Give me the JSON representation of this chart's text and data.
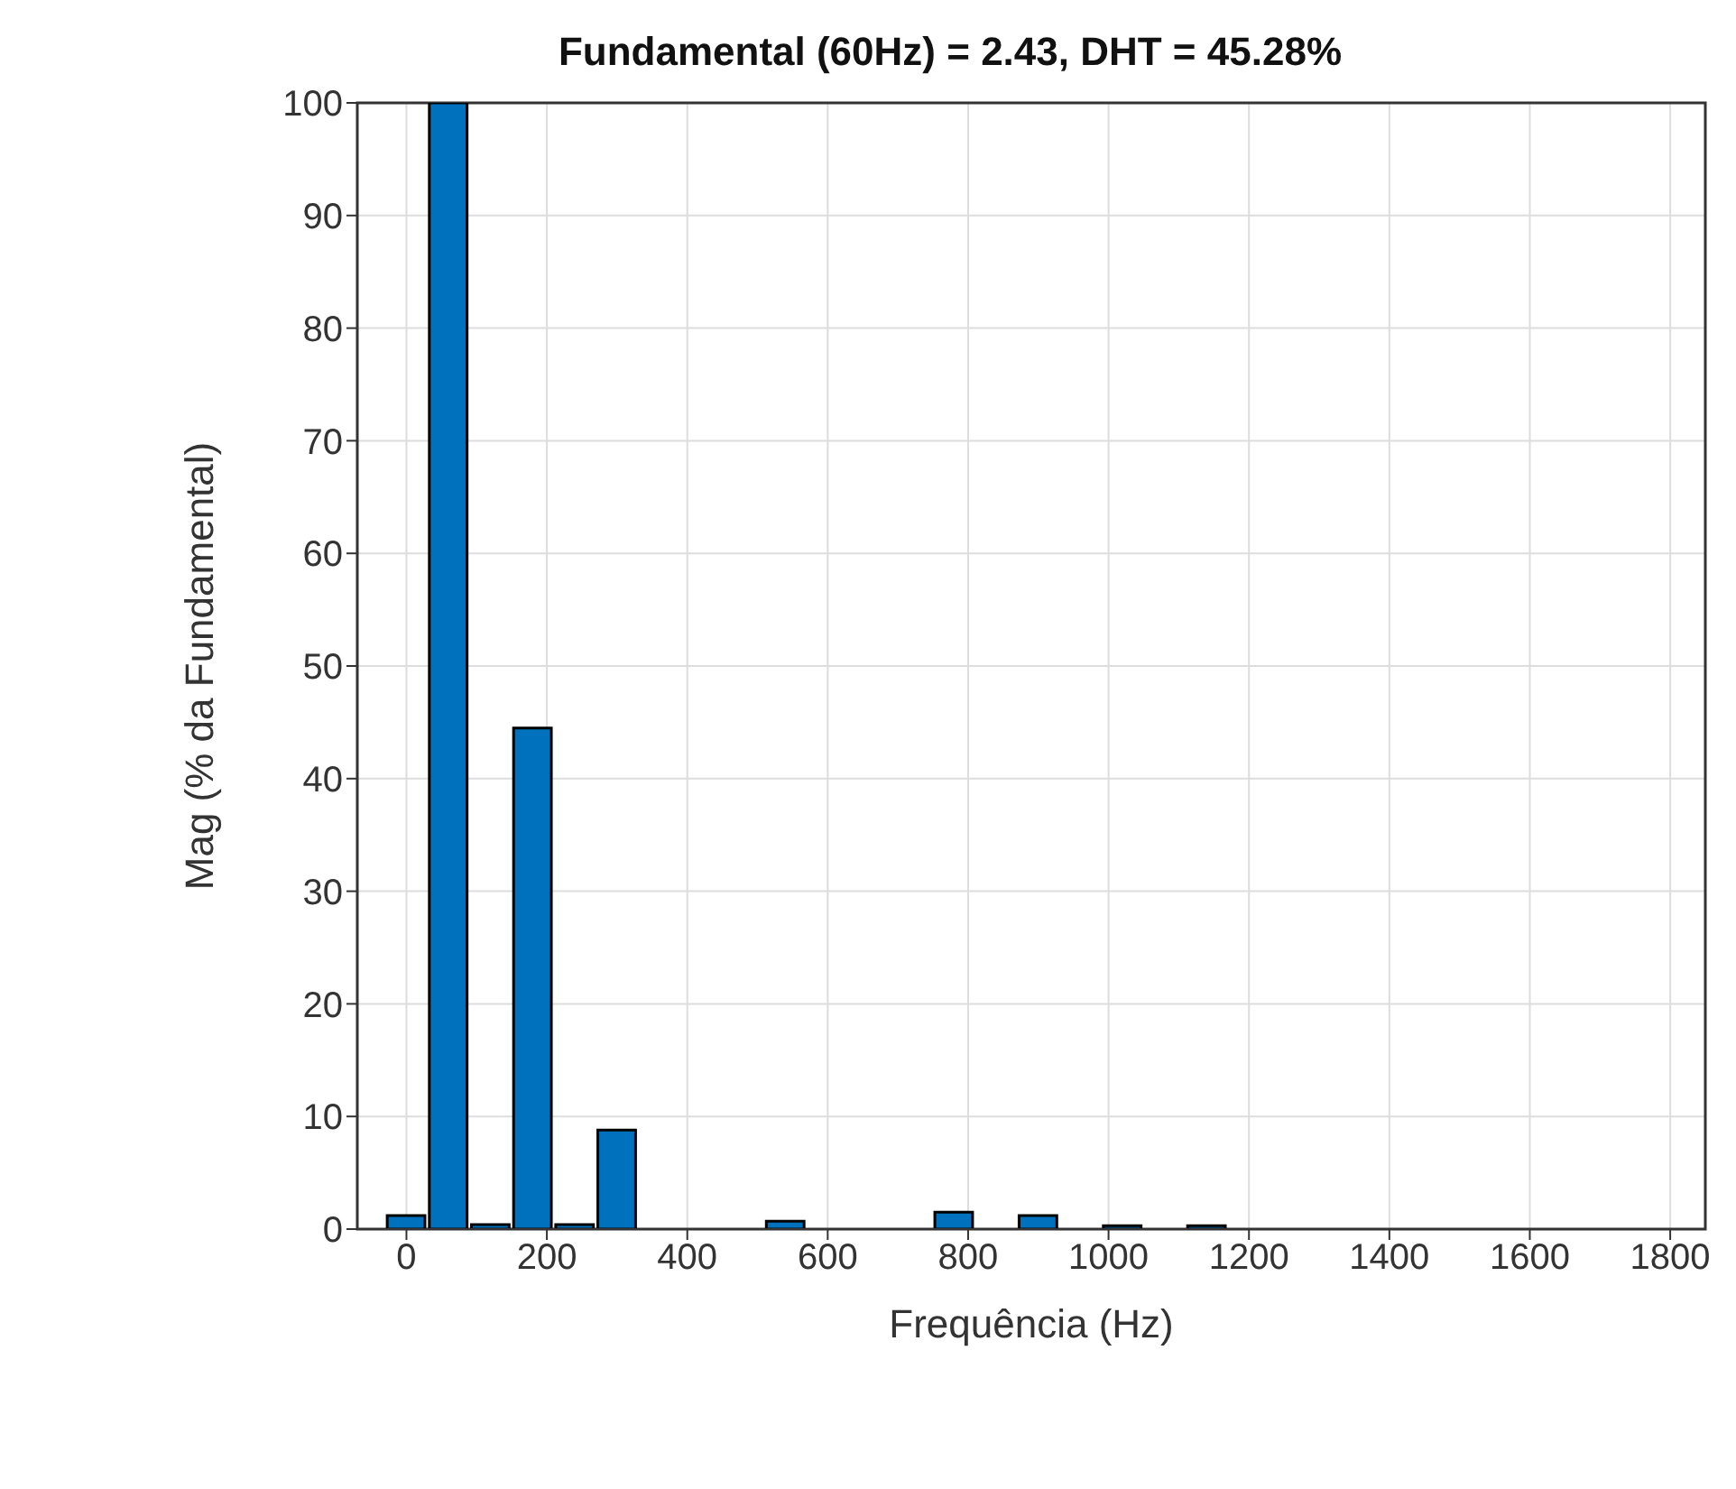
{
  "chart_data": {
    "type": "bar",
    "title": "Fundamental (60Hz) = 2.43, DHT = 45.28%",
    "xlabel": "Frequência (Hz)",
    "ylabel": "Mag (% da Fundamental)",
    "x": [
      0,
      60,
      120,
      180,
      240,
      300,
      540,
      780,
      900,
      1020,
      1140
    ],
    "values": [
      1.2,
      100,
      0.4,
      44.5,
      0.4,
      8.8,
      0.7,
      1.5,
      1.2,
      0.3,
      0.3
    ],
    "color": "#0072bd",
    "xlim": [
      -70,
      1850
    ],
    "xticks": [
      0,
      200,
      400,
      600,
      800,
      1000,
      1200,
      1400,
      1600,
      1800
    ],
    "ylim": [
      0,
      100
    ],
    "yticks": [
      0,
      10,
      20,
      30,
      40,
      50,
      60,
      70,
      80,
      90,
      100
    ],
    "grid": true
  }
}
